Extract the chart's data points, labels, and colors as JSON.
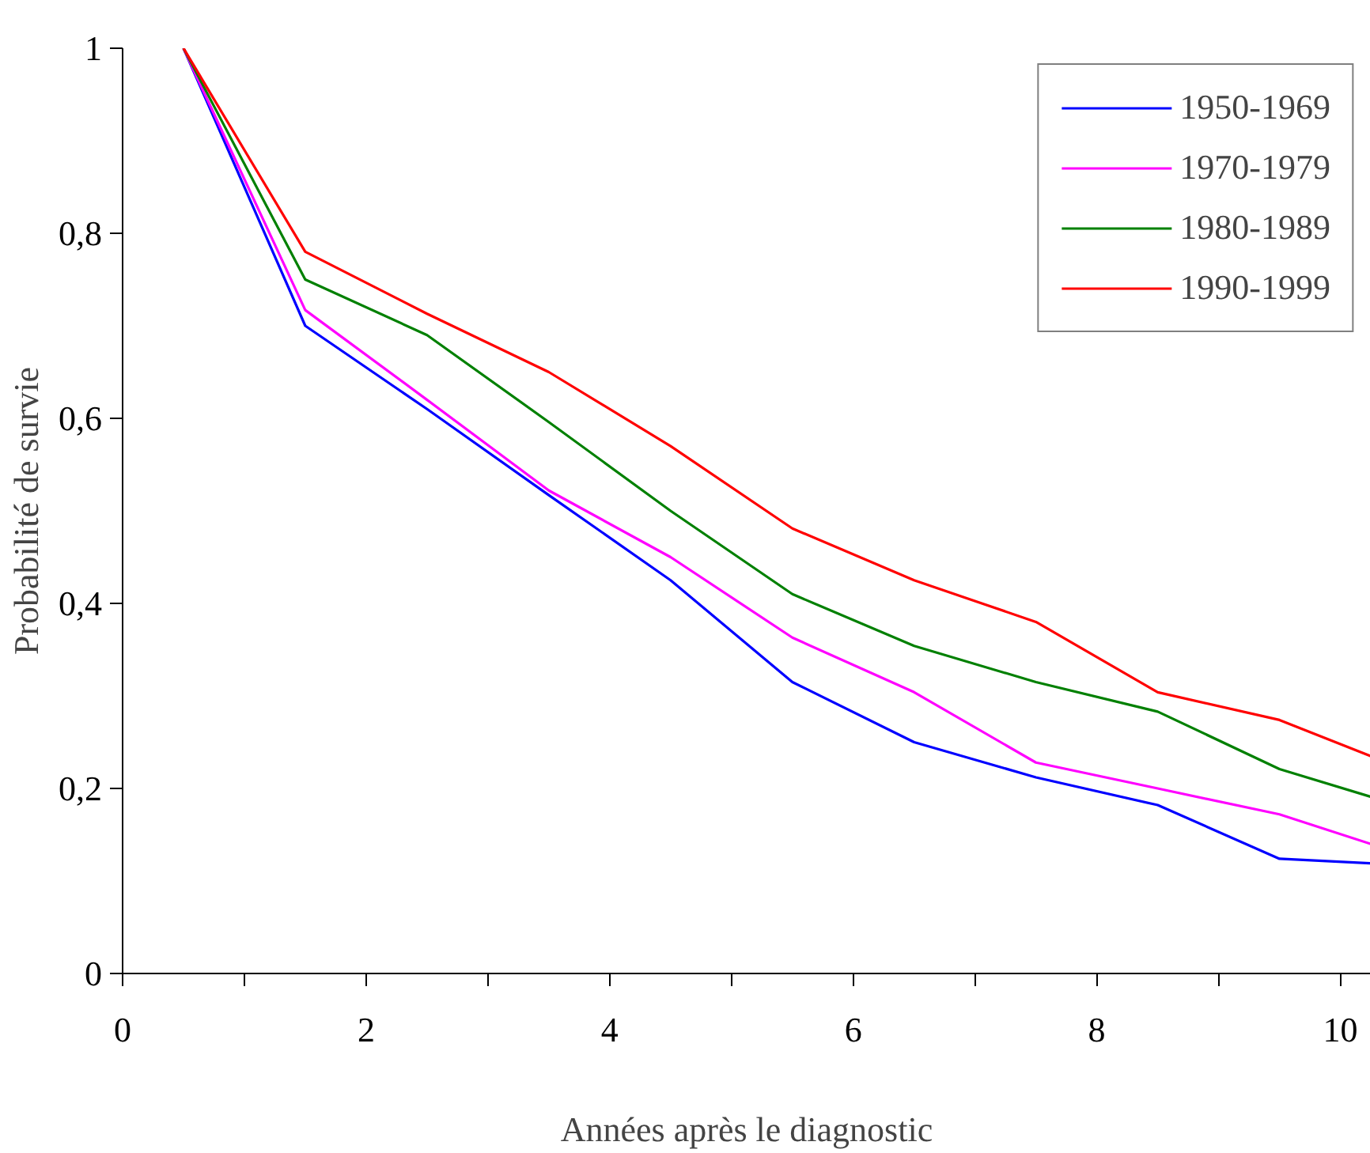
{
  "chart_data": {
    "type": "line",
    "xlabel": "Années après le diagnostic",
    "ylabel": "Probabilité de survie",
    "x": [
      0.5,
      1.5,
      2.5,
      3.5,
      4.5,
      5.5,
      6.5,
      7.5,
      8.5,
      9.5,
      10.25
    ],
    "series": [
      {
        "name": "1950-1969",
        "color": "#0000ff",
        "values": [
          1,
          0.7,
          0.61,
          0.517,
          0.425,
          0.315,
          0.25,
          0.212,
          0.182,
          0.124,
          0.119
        ]
      },
      {
        "name": "1970-1979",
        "color": "#ff00ff",
        "values": [
          1,
          0.717,
          0.62,
          0.522,
          0.45,
          0.363,
          0.304,
          0.228,
          0.2,
          0.172,
          0.14
        ]
      },
      {
        "name": "1980-1989",
        "color": "#008000",
        "values": [
          1,
          0.75,
          0.69,
          0.596,
          0.5,
          0.41,
          0.354,
          0.315,
          0.283,
          0.221,
          0.191
        ]
      },
      {
        "name": "1990-1999",
        "color": "#ff0000",
        "values": [
          1,
          0.78,
          0.713,
          0.65,
          0.57,
          0.481,
          0.425,
          0.38,
          0.304,
          0.274,
          0.235
        ]
      }
    ],
    "xlim": [
      0,
      10.25
    ],
    "ylim": [
      0,
      1
    ],
    "xticks": [
      0,
      {
        "value": 1,
        "label": null
      },
      2,
      {
        "value": 3,
        "label": null
      },
      4,
      {
        "value": 5,
        "label": null
      },
      6,
      {
        "value": 7,
        "label": null
      },
      8,
      {
        "value": 9,
        "label": null
      },
      10
    ],
    "yticks": [
      0,
      {
        "value": 0.2,
        "label": "0,2"
      },
      {
        "value": 0.4,
        "label": "0,4"
      },
      {
        "value": 0.6,
        "label": "0,6"
      },
      {
        "value": 0.8,
        "label": "0,8"
      },
      1
    ],
    "grid": false,
    "legend": "top right",
    "marker": "none",
    "line_style": "solid"
  }
}
